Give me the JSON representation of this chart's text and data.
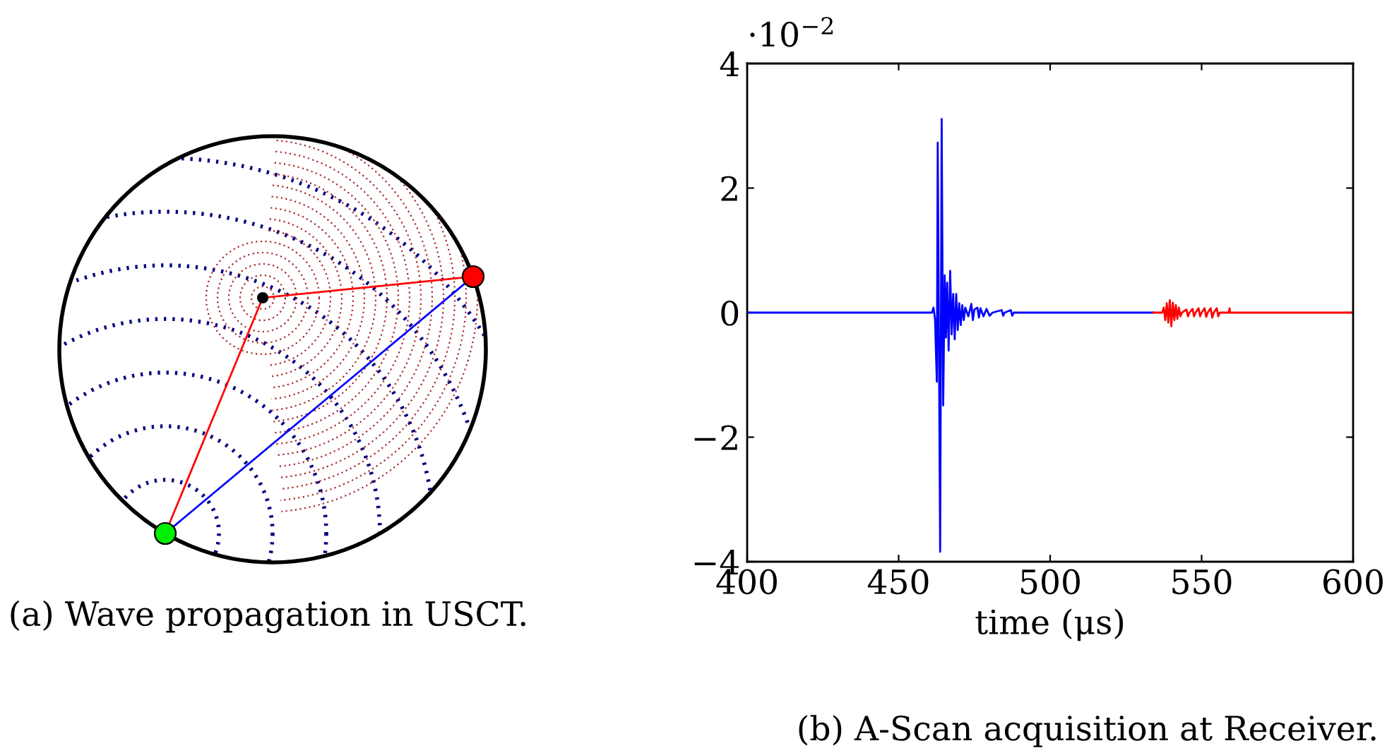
{
  "chart_data": {
    "type": "line",
    "xlabel": "time (μs)",
    "xlim": [
      400,
      600
    ],
    "xticks": [
      400,
      450,
      500,
      550,
      600
    ],
    "ylim": [
      -4,
      4
    ],
    "yticks": [
      {
        "value": -4,
        "label": "−4"
      },
      {
        "value": -2,
        "label": "−2"
      },
      0,
      2,
      4
    ],
    "grid": false,
    "legend": false,
    "marker": "none",
    "line_style": "solid",
    "series": [
      {
        "color": "#0000ff",
        "x": [
          400,
          461,
          461.5,
          462,
          462.6,
          462.9,
          463.3,
          463.7,
          464.2,
          464.7,
          465.2,
          465.6,
          466.0,
          466.5,
          467.0,
          467.5,
          468.0,
          468.5,
          469.0,
          469.5,
          470,
          470.5,
          471,
          471.5,
          472,
          473,
          474,
          474.5,
          475,
          476,
          476.5,
          477,
          478,
          479,
          480,
          481,
          484,
          484.5,
          485,
          487,
          487.5,
          488,
          534
        ],
        "values": [
          0,
          0,
          0.08,
          -0.1,
          -1.11,
          2.73,
          -0.5,
          -3.84,
          3.11,
          -1.49,
          0.6,
          -0.4,
          0.48,
          -0.61,
          0.67,
          -0.35,
          0.3,
          -0.43,
          0.3,
          -0.28,
          0.15,
          -0.2,
          0.12,
          -0.12,
          0.08,
          -0.06,
          0.14,
          -0.12,
          0.05,
          0.08,
          -0.08,
          0.07,
          -0.06,
          0.06,
          -0.05,
          0,
          0.04,
          -0.05,
          0,
          0.04,
          -0.05,
          0,
          0
        ]
      },
      {
        "color": "#ff0000",
        "x": [
          534,
          537,
          537.5,
          538,
          538.5,
          539,
          539.5,
          540,
          540.5,
          541,
          541.5,
          542,
          542.5,
          543,
          543.5,
          545,
          545.5,
          546,
          547,
          547.5,
          548,
          549,
          549.5,
          550,
          551,
          551.5,
          552,
          553,
          553.5,
          554,
          555,
          555.5,
          556,
          559,
          559.2,
          559.4,
          600
        ],
        "values": [
          0,
          0,
          0.08,
          -0.12,
          0.15,
          -0.16,
          0.2,
          -0.22,
          0.16,
          -0.12,
          0.12,
          -0.1,
          0.08,
          -0.06,
          0,
          0.05,
          -0.06,
          0,
          0.06,
          -0.06,
          0,
          0.07,
          -0.06,
          0,
          0.07,
          -0.07,
          0,
          0.07,
          -0.08,
          0,
          0.07,
          -0.06,
          0,
          0,
          0.07,
          0,
          0
        ]
      }
    ],
    "annotations": [
      "·10$^{−2}$",
      "(a) Wave propagation in USCT.",
      "(b) A-Scan acquisition at Receiver."
    ]
  }
}
